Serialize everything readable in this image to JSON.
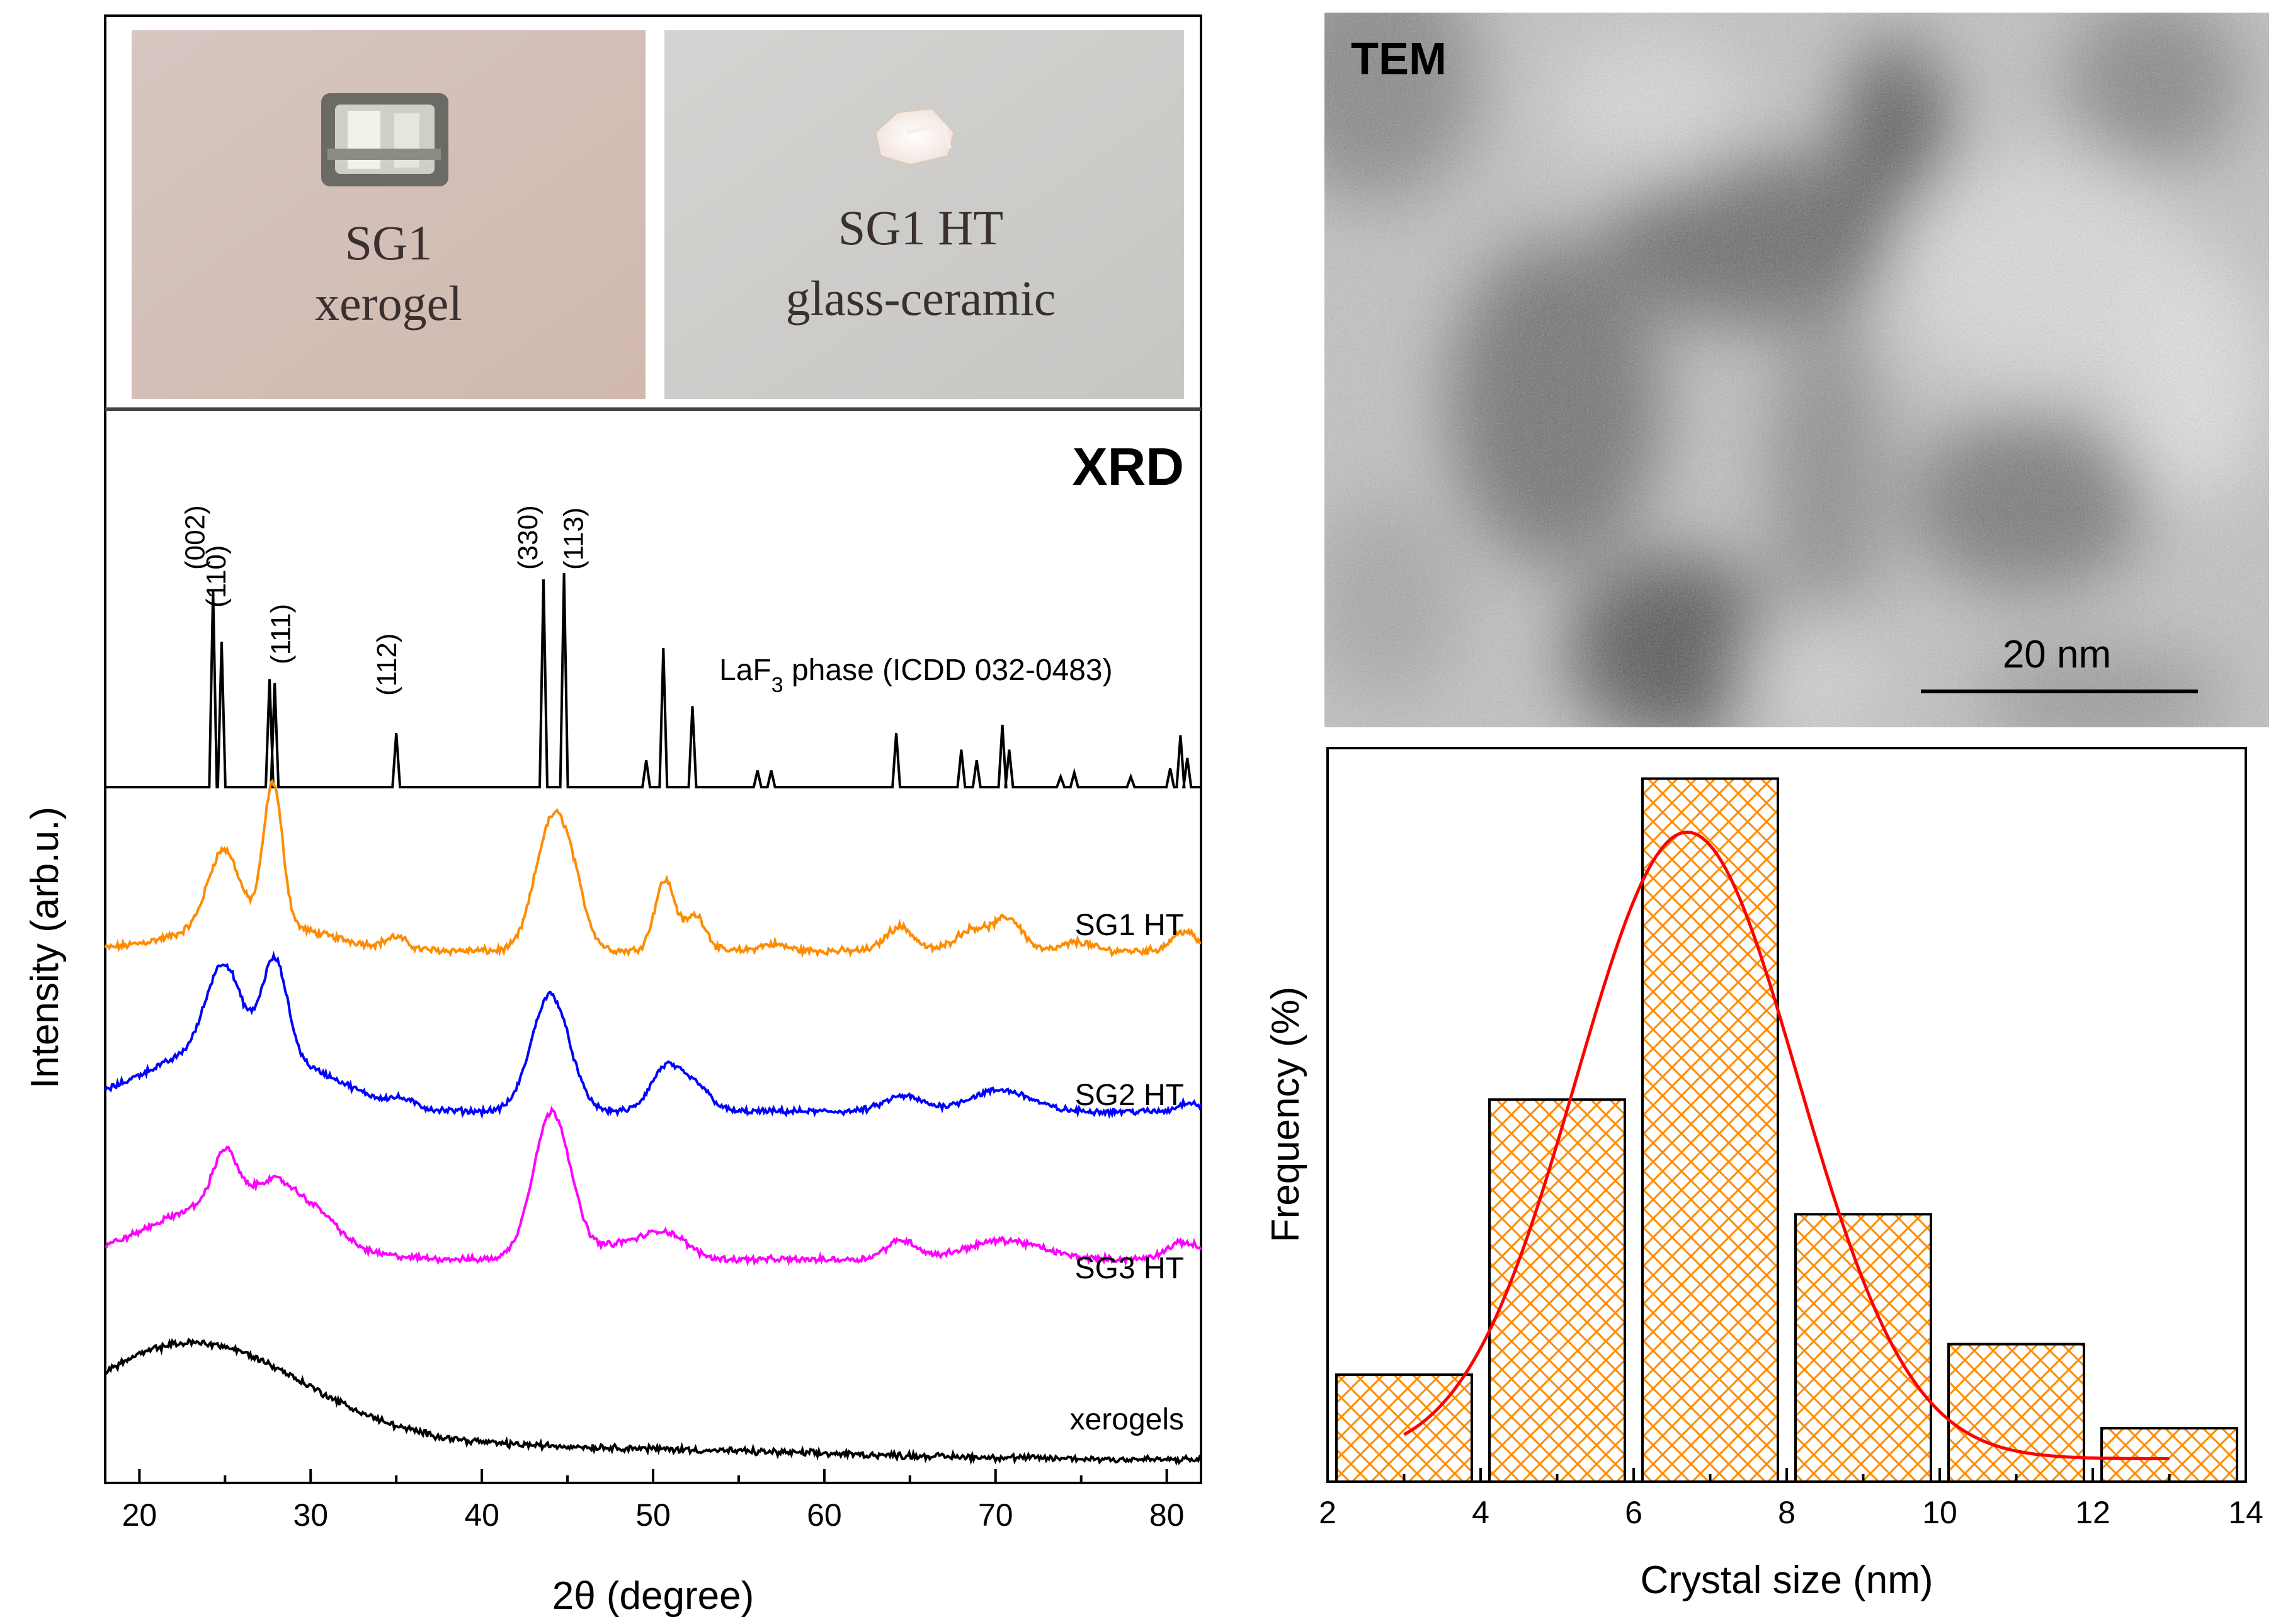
{
  "photos": {
    "left": {
      "line1": "SG1",
      "line2": "xerogel"
    },
    "right": {
      "line1": "SG1 HT",
      "line2": "glass-ceramic"
    }
  },
  "tem": {
    "label": "TEM",
    "scale_bar": "20 nm"
  },
  "chart_data": [
    {
      "type": "line",
      "title": "XRD",
      "xlabel": "2θ (degree)",
      "ylabel": "Intensity (arb.u.)",
      "xlim": [
        18,
        82
      ],
      "xticks": [
        20,
        30,
        40,
        50,
        60,
        70,
        80
      ],
      "reference": {
        "name_main": "LaF",
        "name_sub": "3",
        "name_rest": " phase (ICDD 032-0483)",
        "sticks": [
          {
            "x": 24.3,
            "h": 0.95
          },
          {
            "x": 24.8,
            "h": 0.7
          },
          {
            "x": 27.6,
            "h": 0.52
          },
          {
            "x": 27.9,
            "h": 0.5
          },
          {
            "x": 35.0,
            "h": 0.26
          },
          {
            "x": 43.6,
            "h": 1.0
          },
          {
            "x": 44.8,
            "h": 1.03
          },
          {
            "x": 49.6,
            "h": 0.13
          },
          {
            "x": 50.6,
            "h": 0.67
          },
          {
            "x": 52.3,
            "h": 0.39
          },
          {
            "x": 56.1,
            "h": 0.08
          },
          {
            "x": 56.9,
            "h": 0.08
          },
          {
            "x": 64.2,
            "h": 0.26
          },
          {
            "x": 68.0,
            "h": 0.18
          },
          {
            "x": 68.9,
            "h": 0.13
          },
          {
            "x": 70.4,
            "h": 0.3
          },
          {
            "x": 70.8,
            "h": 0.18
          },
          {
            "x": 73.8,
            "h": 0.05
          },
          {
            "x": 74.6,
            "h": 0.07
          },
          {
            "x": 77.9,
            "h": 0.05
          },
          {
            "x": 80.2,
            "h": 0.09
          },
          {
            "x": 80.8,
            "h": 0.25
          },
          {
            "x": 81.2,
            "h": 0.14
          }
        ],
        "peak_labels": [
          {
            "x": 24.3,
            "text": "(002)"
          },
          {
            "x": 24.8,
            "text": "(110)"
          },
          {
            "x": 27.7,
            "text": "(111)"
          },
          {
            "x": 35.0,
            "text": "(112)"
          },
          {
            "x": 43.6,
            "text": "(330)"
          },
          {
            "x": 44.8,
            "text": "(113)"
          }
        ]
      },
      "series": [
        {
          "name": "SG1 HT",
          "color": "#ff8c00",
          "peaks": [
            [
              24.9,
              0.34,
              0.9
            ],
            [
              27.8,
              0.64,
              0.55
            ],
            [
              35.0,
              0.05,
              0.6
            ],
            [
              43.8,
              0.42,
              0.9
            ],
            [
              45.0,
              0.36,
              0.9
            ],
            [
              50.7,
              0.32,
              0.6
            ],
            [
              52.5,
              0.16,
              0.6
            ],
            [
              57.0,
              0.03,
              0.8
            ],
            [
              64.4,
              0.11,
              0.8
            ],
            [
              68.7,
              0.1,
              1.0
            ],
            [
              70.8,
              0.14,
              0.8
            ],
            [
              74.8,
              0.04,
              0.8
            ],
            [
              81.0,
              0.09,
              0.7
            ]
          ],
          "broad": [
            [
              26.5,
              0.13,
              4.0
            ]
          ]
        },
        {
          "name": "SG2 HT",
          "color": "#0000ff",
          "peaks": [
            [
              24.9,
              0.46,
              1.0
            ],
            [
              27.9,
              0.52,
              0.75
            ],
            [
              35.3,
              0.04,
              0.8
            ],
            [
              44.0,
              0.62,
              1.1
            ],
            [
              50.8,
              0.24,
              0.9
            ],
            [
              52.6,
              0.12,
              0.8
            ],
            [
              64.6,
              0.08,
              1.1
            ],
            [
              69.3,
              0.06,
              1.6
            ],
            [
              71.0,
              0.07,
              1.5
            ],
            [
              81.3,
              0.05,
              0.6
            ]
          ],
          "broad": [
            [
              24.5,
              0.32,
              4.5
            ],
            [
              30.5,
              0.08,
              2.5
            ]
          ]
        },
        {
          "name": "SG3 HT",
          "color": "#ff00ff",
          "peaks": [
            [
              25.0,
              0.28,
              0.7
            ],
            [
              28.0,
              0.18,
              1.2
            ],
            [
              30.5,
              0.12,
              1.2
            ],
            [
              44.1,
              0.78,
              1.1
            ],
            [
              48.2,
              0.08,
              1.5
            ],
            [
              50.8,
              0.13,
              1.2
            ],
            [
              64.5,
              0.1,
              0.9
            ],
            [
              70.5,
              0.1,
              2.2
            ],
            [
              81.0,
              0.09,
              1.0
            ]
          ],
          "broad": [
            [
              25.0,
              0.3,
              4.2
            ]
          ]
        },
        {
          "name": "xerogels",
          "color": "#000000",
          "peaks": [],
          "broad": [
            [
              23.0,
              0.52,
              6.5
            ],
            [
              35.0,
              0.08,
              20.0
            ]
          ]
        }
      ]
    },
    {
      "type": "bar",
      "title": "",
      "xlabel": "Crystal size (nm)",
      "ylabel": "Frequency (%)",
      "xlim": [
        2,
        14
      ],
      "xticks": [
        2,
        4,
        6,
        8,
        10,
        12,
        14
      ],
      "bins": [
        {
          "x0": 2,
          "x1": 4,
          "value": 7
        },
        {
          "x0": 4,
          "x1": 6,
          "value": 25
        },
        {
          "x0": 6,
          "x1": 8,
          "value": 46
        },
        {
          "x0": 8,
          "x1": 10,
          "value": 17.5
        },
        {
          "x0": 10,
          "x1": 12,
          "value": 9
        },
        {
          "x0": 12,
          "x1": 14,
          "value": 3.5
        }
      ],
      "bar_fill": "#ff8c00",
      "fit": {
        "type": "gaussian",
        "color": "#ff0000",
        "center": 6.7,
        "sigma": 1.45,
        "amplitude": 41,
        "offset": 1.5,
        "x_range": [
          3,
          13
        ]
      },
      "ylim": [
        0,
        48
      ]
    }
  ]
}
